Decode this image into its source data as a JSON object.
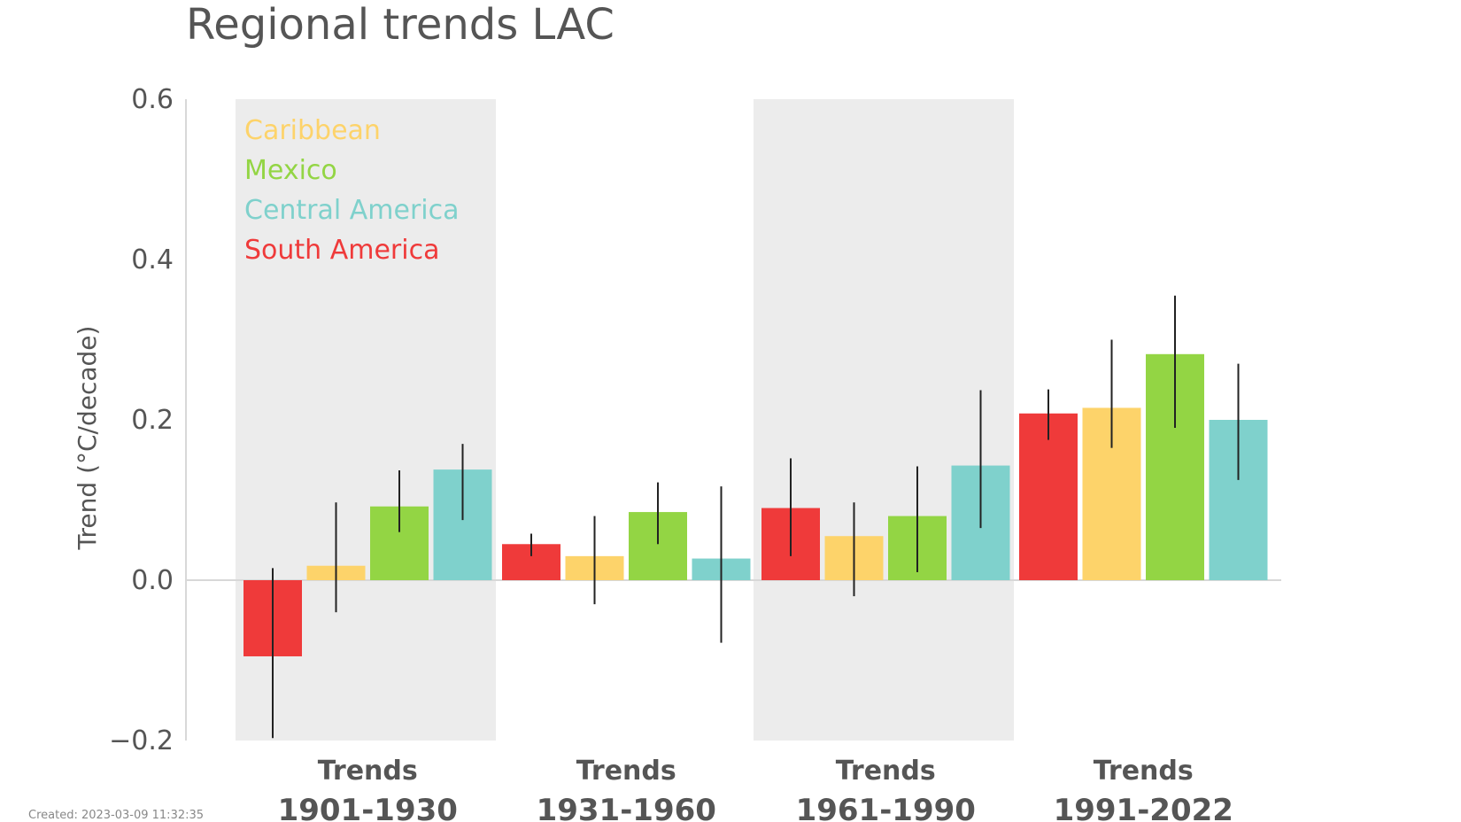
{
  "chart_data": {
    "type": "bar",
    "title": "Regional trends LAC",
    "ylabel": "Trend (°C/decade)",
    "ylim": [
      -0.2,
      0.6
    ],
    "yticks": [
      "0.6",
      "0.4",
      "0.2",
      "0.0",
      "−0.2"
    ],
    "ytick_values": [
      0.6,
      0.4,
      0.2,
      0.0,
      -0.2
    ],
    "categories": [
      {
        "line1": "Trends",
        "line2": "1901-1930"
      },
      {
        "line1": "Trends",
        "line2": "1931-1960"
      },
      {
        "line1": "Trends",
        "line2": "1961-1990"
      },
      {
        "line1": "Trends",
        "line2": "1991-2022"
      }
    ],
    "shaded_categories": [
      0,
      2
    ],
    "legend": [
      "Caribbean",
      "Mexico",
      "Central America",
      "South America"
    ],
    "legend_placement": "top-left",
    "grid": false,
    "series": [
      {
        "name": "South America",
        "color": "#ef3a3a",
        "values": [
          -0.095,
          0.045,
          0.09,
          0.208
        ],
        "err_low": [
          -0.197,
          0.03,
          0.03,
          0.175
        ],
        "err_high": [
          0.015,
          0.058,
          0.152,
          0.238
        ]
      },
      {
        "name": "Caribbean",
        "color": "#fdd36a",
        "values": [
          0.018,
          0.03,
          0.055,
          0.215
        ],
        "err_low": [
          -0.04,
          -0.03,
          -0.02,
          0.165
        ],
        "err_high": [
          0.097,
          0.08,
          0.097,
          0.3
        ]
      },
      {
        "name": "Mexico",
        "color": "#93d544",
        "values": [
          0.092,
          0.085,
          0.08,
          0.282
        ],
        "err_low": [
          0.06,
          0.045,
          0.01,
          0.19
        ],
        "err_high": [
          0.137,
          0.122,
          0.142,
          0.355
        ]
      },
      {
        "name": "Central America",
        "color": "#7fd1cc",
        "values": [
          0.138,
          0.027,
          0.143,
          0.2
        ],
        "err_low": [
          0.075,
          -0.078,
          0.065,
          0.125
        ],
        "err_high": [
          0.17,
          0.117,
          0.237,
          0.27
        ]
      }
    ],
    "legend_colors": {
      "Caribbean": "#fdd36a",
      "Mexico": "#93d544",
      "Central America": "#7fd1cc",
      "South America": "#ef3a3a"
    },
    "shade_color": "#ececec",
    "axis_color": "#d8d8d8",
    "error_bar_color": "#222222"
  },
  "footer": {
    "created": "Created: 2023-03-09 11:32:35"
  }
}
